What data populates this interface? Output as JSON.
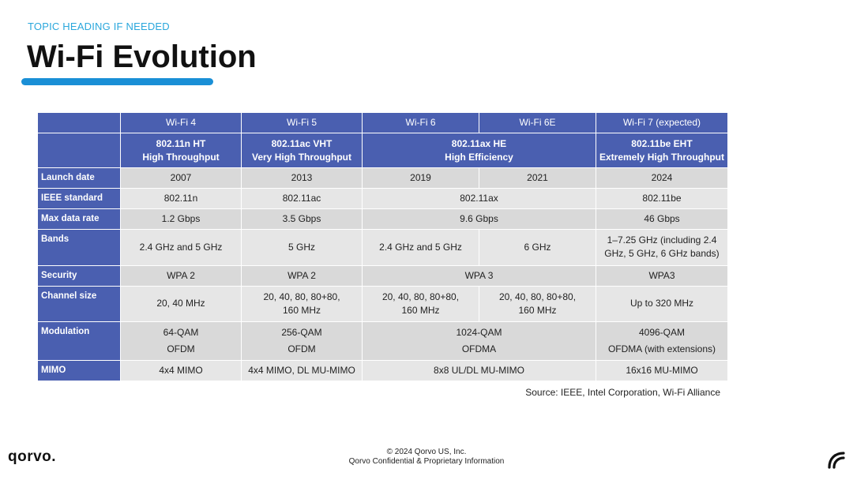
{
  "header": {
    "topic": "TOPIC HEADING IF NEEDED",
    "title": "Wi-Fi Evolution"
  },
  "table": {
    "generations": [
      "Wi-Fi 4",
      "Wi-Fi 5",
      "Wi-Fi 6",
      "Wi-Fi 6E",
      "Wi-Fi 7 (expected)"
    ],
    "standards": [
      {
        "line1": "802.11n  HT",
        "line2": "High Throughput"
      },
      {
        "line1": "802.11ac  VHT",
        "line2": "Very High Throughput"
      },
      {
        "line1": "802.11ax  HE",
        "line2": "High Efficiency"
      },
      {
        "line1": "802.11be  EHT",
        "line2": "Extremely High Throughput"
      }
    ],
    "launch_date": {
      "label": "Launch date",
      "values": [
        "2007",
        "2013",
        "2019",
        "2021",
        "2024"
      ]
    },
    "ieee_standard": {
      "label": "IEEE standard",
      "values": [
        "802.11n",
        "802.11ac",
        "802.11ax",
        "802.11be"
      ]
    },
    "max_data_rate": {
      "label": "Max data rate",
      "values": [
        "1.2 Gbps",
        "3.5 Gbps",
        "9.6 Gbps",
        "46 Gbps"
      ]
    },
    "bands": {
      "label": "Bands",
      "values": [
        "2.4 GHz and 5 GHz",
        "5 GHz",
        "2.4 GHz and 5 GHz",
        "6 GHz"
      ],
      "wifi7_line1": "1–7.25 GHz (including 2.4",
      "wifi7_line2": "GHz, 5 GHz, 6 GHz bands)"
    },
    "security": {
      "label": "Security",
      "values": [
        "WPA 2",
        "WPA 2",
        "WPA 3",
        "WPA3"
      ]
    },
    "channel_size": {
      "label": "Channel size",
      "wifi4": "20, 40 MHz",
      "wifi5_line1": "20, 40, 80, 80+80,",
      "wifi5_line2": "160 MHz",
      "wifi6_line1": "20, 40, 80, 80+80,",
      "wifi6_line2": "160 MHz",
      "wifi6e_line1": "20, 40, 80, 80+80,",
      "wifi6e_line2": "160 MHz",
      "wifi7": "Up to 320 MHz"
    },
    "modulation": {
      "label": "Modulation",
      "wifi4_line1": "64-QAM",
      "wifi4_line2": "OFDM",
      "wifi5_line1": "256-QAM",
      "wifi5_line2": "OFDM",
      "wifi6_line1": "1024-QAM",
      "wifi6_line2": "OFDMA",
      "wifi7_line1": "4096-QAM",
      "wifi7_line2": "OFDMA (with extensions)"
    },
    "mimo": {
      "label": "MIMO",
      "values": [
        "4x4 MIMO",
        "4x4 MIMO, DL MU-MIMO",
        "8x8 UL/DL MU-MIMO",
        "16x16 MU-MIMO"
      ]
    }
  },
  "source": "Source: IEEE, Intel Corporation, Wi-Fi Alliance",
  "footer": {
    "copyright": "© 2024 Qorvo US, Inc.",
    "confidential": "Qorvo Confidential & Proprietary Information"
  },
  "logo_text": "qorvo.",
  "colors": {
    "accent": "#1a8fd6",
    "topic": "#2aa7dc",
    "header_fill": "#4a5fb0",
    "cell_fill": "#d9d9d9"
  }
}
